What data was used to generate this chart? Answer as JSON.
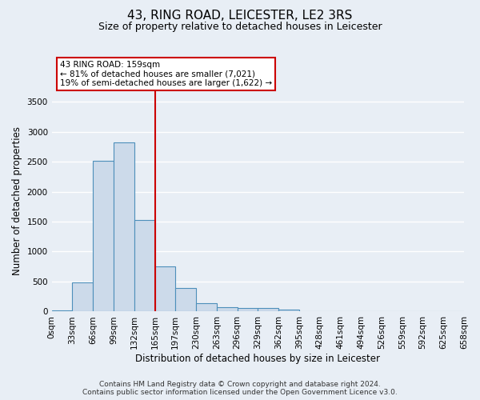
{
  "title": "43, RING ROAD, LEICESTER, LE2 3RS",
  "subtitle": "Size of property relative to detached houses in Leicester",
  "xlabel": "Distribution of detached houses by size in Leicester",
  "ylabel": "Number of detached properties",
  "bar_values": [
    25,
    480,
    2510,
    2820,
    1520,
    750,
    390,
    145,
    75,
    60,
    60,
    30,
    0,
    0,
    0,
    0,
    0,
    0,
    0,
    0
  ],
  "bin_labels": [
    "0sqm",
    "33sqm",
    "66sqm",
    "99sqm",
    "132sqm",
    "165sqm",
    "197sqm",
    "230sqm",
    "263sqm",
    "296sqm",
    "329sqm",
    "362sqm",
    "395sqm",
    "428sqm",
    "461sqm",
    "494sqm",
    "526sqm",
    "559sqm",
    "592sqm",
    "625sqm",
    "658sqm"
  ],
  "bar_color": "#ccdaea",
  "bar_edge_color": "#4d8fba",
  "vline_x": 5.0,
  "vline_color": "#cc0000",
  "annotation_line1": "43 RING ROAD: 159sqm",
  "annotation_line2": "← 81% of detached houses are smaller (7,021)",
  "annotation_line3": "19% of semi-detached houses are larger (1,622) →",
  "annotation_box_color": "#ffffff",
  "annotation_box_edge_color": "#cc0000",
  "ylim": [
    0,
    3700
  ],
  "yticks": [
    0,
    500,
    1000,
    1500,
    2000,
    2500,
    3000,
    3500
  ],
  "footer_line1": "Contains HM Land Registry data © Crown copyright and database right 2024.",
  "footer_line2": "Contains public sector information licensed under the Open Government Licence v3.0.",
  "background_color": "#e8eef5",
  "plot_background_color": "#e8eef5",
  "grid_color": "#ffffff",
  "title_fontsize": 11,
  "subtitle_fontsize": 9,
  "label_fontsize": 8.5,
  "tick_fontsize": 7.5,
  "footer_fontsize": 6.5
}
